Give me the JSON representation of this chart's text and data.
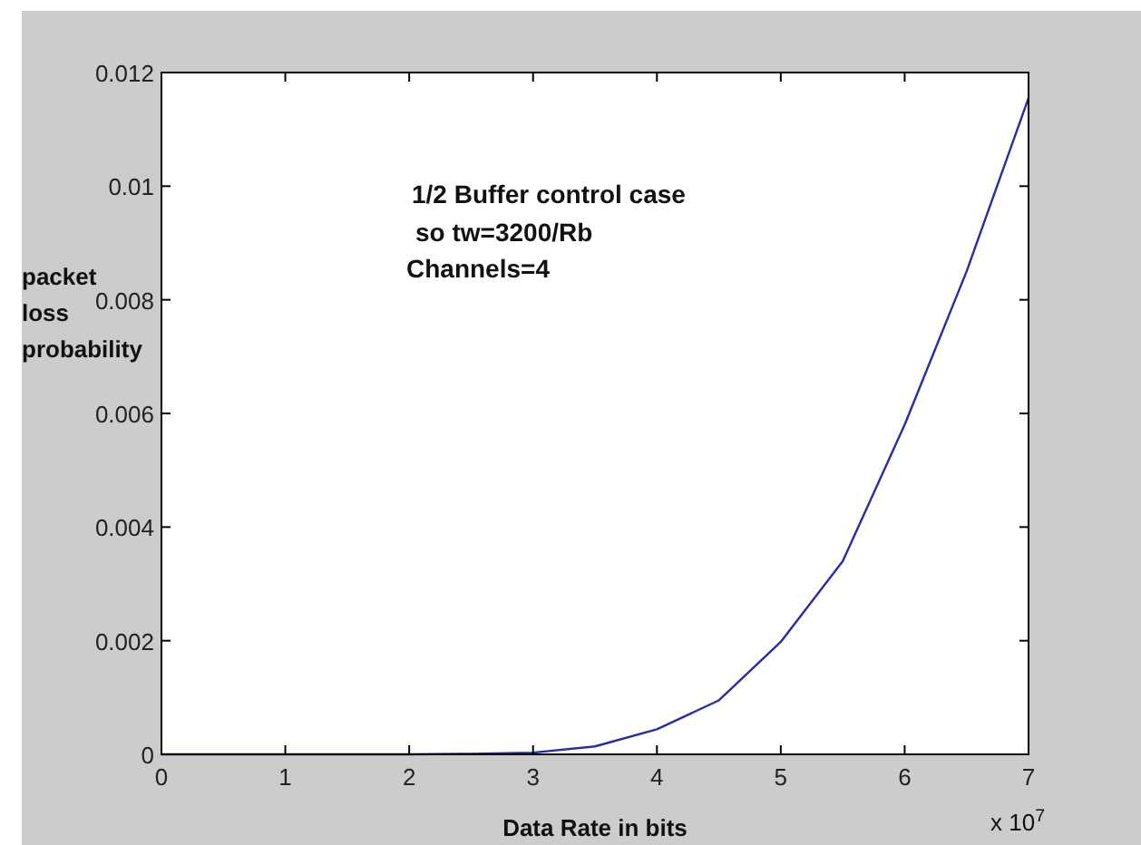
{
  "chart_data": {
    "type": "line",
    "xlabel": "Data Rate in bits",
    "ylabel": "packet loss probability",
    "x": [
      0,
      1,
      2,
      2.5,
      3,
      3.5,
      4,
      4.5,
      5,
      5.5,
      6,
      6.5,
      7
    ],
    "series": [
      {
        "color": "#2a2aa8",
        "values": [
          0,
          0,
          0,
          1e-05,
          3e-05,
          0.00014,
          0.00044,
          0.00095,
          0.00198,
          0.0034,
          0.0058,
          0.0085,
          0.01155
        ]
      }
    ],
    "xlim": [
      0,
      7
    ],
    "xticks": [
      0,
      1,
      2,
      3,
      4,
      5,
      6,
      7
    ],
    "ylim": [
      0,
      0.012
    ],
    "yticks": [
      0,
      0.002,
      0.004,
      0.006,
      0.008,
      0.01,
      0.012
    ],
    "grid": false,
    "marker": "none",
    "line_style": "solid",
    "annotations": [
      "1/2 Buffer control case",
      "so tw=3200/Rb",
      "Channels=4",
      "x 10$^{7}$"
    ]
  }
}
